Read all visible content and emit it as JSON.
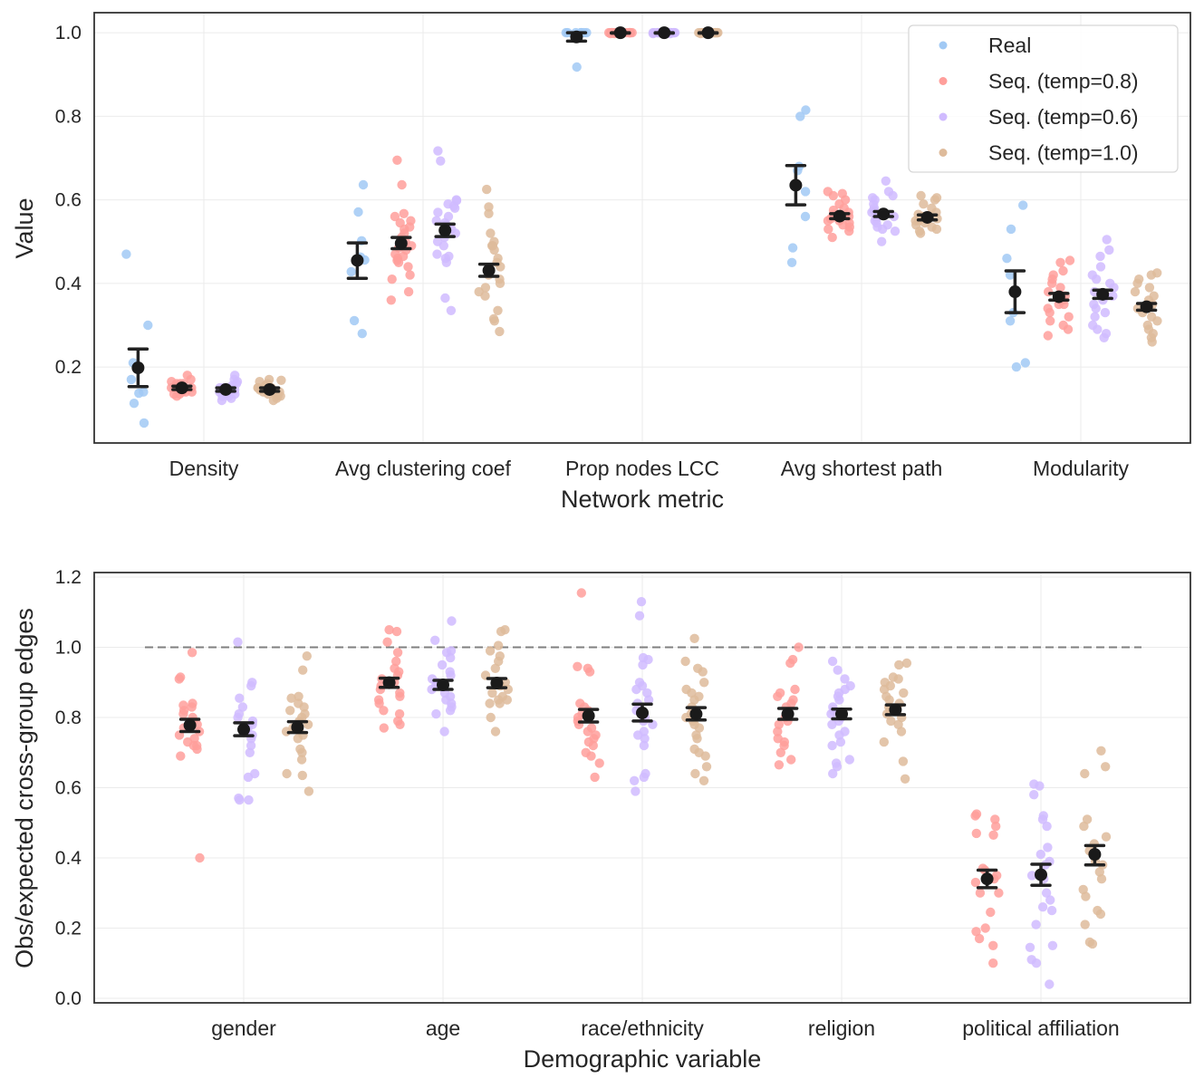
{
  "chart_data": [
    {
      "type": "scatter",
      "subtype": "strip plot with mean and error bars",
      "xlabel": "Network metric",
      "ylabel": "Value",
      "categories": [
        "Density",
        "Avg clustering coef",
        "Prop nodes LCC",
        "Avg shortest path",
        "Modularity"
      ],
      "ylim": [
        0.018,
        1.048
      ],
      "yticks": [
        "0.2",
        "0.4",
        "0.6",
        "0.8",
        "1.0"
      ],
      "grid": true,
      "legend": {
        "placement": "top-right",
        "entries": [
          "Real",
          "Seq. (temp=0.8)",
          "Seq. (temp=0.6)",
          "Seq. (temp=1.0)"
        ]
      },
      "series": [
        {
          "name": "Real",
          "color": "#a1c9f4",
          "values": [
            [
              0.47,
              0.3,
              0.21,
              0.17,
              0.14,
              0.137,
              0.113,
              0.066
            ],
            [
              0.636,
              0.571,
              0.502,
              0.463,
              0.456,
              0.428,
              0.311,
              0.28
            ],
            [
              1.0,
              1.0,
              1.0,
              1.0,
              1.0,
              1.0,
              1.0,
              0.918
            ],
            [
              0.815,
              0.8,
              0.68,
              0.67,
              0.62,
              0.56,
              0.485,
              0.45
            ],
            [
              0.587,
              0.53,
              0.46,
              0.42,
              0.33,
              0.31,
              0.21,
              0.2
            ]
          ],
          "mean": [
            0.198,
            0.455,
            0.99,
            0.635,
            0.38
          ],
          "ci": [
            [
              0.153,
              0.243
            ],
            [
              0.412,
              0.497
            ],
            [
              0.98,
              1.0
            ],
            [
              0.588,
              0.682
            ],
            [
              0.33,
              0.43
            ]
          ]
        },
        {
          "name": "Seq. (temp=0.8)",
          "color": "#ff9f9b",
          "values": [
            [
              0.18,
              0.17,
              0.165,
              0.16,
              0.16,
              0.155,
              0.155,
              0.15,
              0.15,
              0.15,
              0.145,
              0.145,
              0.14,
              0.14,
              0.14,
              0.135,
              0.135,
              0.13,
              0.15,
              0.16
            ],
            [
              0.695,
              0.636,
              0.567,
              0.56,
              0.55,
              0.545,
              0.535,
              0.53,
              0.52,
              0.51,
              0.5,
              0.5,
              0.49,
              0.485,
              0.48,
              0.47,
              0.465,
              0.46,
              0.455,
              0.45,
              0.44,
              0.42,
              0.41,
              0.38,
              0.36
            ],
            [
              1.0,
              1.0,
              1.0,
              1.0,
              1.0,
              1.0,
              1.0,
              1.0,
              1.0,
              1.0,
              1.0,
              1.0,
              1.0,
              1.0,
              1.0,
              1.0,
              1.0,
              1.0,
              0.998,
              0.998
            ],
            [
              0.62,
              0.615,
              0.61,
              0.6,
              0.59,
              0.58,
              0.575,
              0.57,
              0.565,
              0.56,
              0.56,
              0.555,
              0.55,
              0.55,
              0.545,
              0.54,
              0.535,
              0.53,
              0.525,
              0.51
            ],
            [
              0.455,
              0.45,
              0.43,
              0.42,
              0.41,
              0.4,
              0.39,
              0.38,
              0.37,
              0.36,
              0.35,
              0.35,
              0.34,
              0.33,
              0.32,
              0.31,
              0.3,
              0.29,
              0.275
            ]
          ],
          "mean": [
            0.15,
            0.496,
            1.0,
            0.561,
            0.368
          ],
          "ci": [
            [
              0.146,
              0.154
            ],
            [
              0.483,
              0.51
            ],
            [
              0.999,
              1.0
            ],
            [
              0.555,
              0.567
            ],
            [
              0.36,
              0.376
            ]
          ]
        },
        {
          "name": "Seq. (temp=0.6)",
          "color": "#d0bbff",
          "values": [
            [
              0.18,
              0.17,
              0.165,
              0.16,
              0.155,
              0.15,
              0.15,
              0.145,
              0.145,
              0.14,
              0.14,
              0.14,
              0.135,
              0.135,
              0.13,
              0.13,
              0.125,
              0.12,
              0.15,
              0.145
            ],
            [
              0.717,
              0.693,
              0.6,
              0.598,
              0.59,
              0.585,
              0.58,
              0.57,
              0.56,
              0.55,
              0.545,
              0.54,
              0.53,
              0.52,
              0.51,
              0.5,
              0.49,
              0.47,
              0.465,
              0.46,
              0.45,
              0.365,
              0.335
            ],
            [
              1.0,
              1.0,
              1.0,
              1.0,
              1.0,
              1.0,
              1.0,
              1.0,
              1.0,
              1.0,
              1.0,
              1.0,
              1.0,
              1.0,
              1.0,
              1.0,
              1.0,
              1.0,
              0.998,
              0.998
            ],
            [
              0.645,
              0.62,
              0.61,
              0.605,
              0.6,
              0.59,
              0.58,
              0.575,
              0.57,
              0.565,
              0.56,
              0.555,
              0.55,
              0.545,
              0.54,
              0.535,
              0.53,
              0.525,
              0.5
            ],
            [
              0.505,
              0.48,
              0.465,
              0.44,
              0.42,
              0.41,
              0.4,
              0.39,
              0.38,
              0.37,
              0.36,
              0.35,
              0.34,
              0.33,
              0.32,
              0.3,
              0.29,
              0.28,
              0.27
            ]
          ],
          "mean": [
            0.146,
            0.527,
            1.0,
            0.566,
            0.374
          ],
          "ci": [
            [
              0.142,
              0.15
            ],
            [
              0.512,
              0.542
            ],
            [
              0.999,
              1.0
            ],
            [
              0.56,
              0.572
            ],
            [
              0.364,
              0.384
            ]
          ]
        },
        {
          "name": "Seq. (temp=1.0)",
          "color": "#debb9b",
          "values": [
            [
              0.17,
              0.168,
              0.165,
              0.16,
              0.155,
              0.15,
              0.15,
              0.145,
              0.145,
              0.14,
              0.14,
              0.14,
              0.135,
              0.135,
              0.13,
              0.13,
              0.125,
              0.12,
              0.15,
              0.145
            ],
            [
              0.625,
              0.583,
              0.567,
              0.52,
              0.5,
              0.49,
              0.49,
              0.48,
              0.46,
              0.45,
              0.44,
              0.43,
              0.42,
              0.41,
              0.4,
              0.39,
              0.38,
              0.37,
              0.335,
              0.315,
              0.31,
              0.285
            ],
            [
              1.0,
              1.0,
              1.0,
              1.0,
              1.0,
              1.0,
              1.0,
              1.0,
              1.0,
              1.0,
              1.0,
              1.0,
              1.0,
              1.0,
              1.0,
              1.0,
              1.0,
              1.0,
              0.998,
              0.998
            ],
            [
              0.61,
              0.605,
              0.6,
              0.59,
              0.58,
              0.57,
              0.565,
              0.56,
              0.555,
              0.55,
              0.55,
              0.545,
              0.54,
              0.535,
              0.53,
              0.525,
              0.52
            ],
            [
              0.425,
              0.42,
              0.41,
              0.4,
              0.39,
              0.38,
              0.37,
              0.36,
              0.35,
              0.34,
              0.33,
              0.32,
              0.31,
              0.3,
              0.29,
              0.28,
              0.27,
              0.26
            ]
          ],
          "mean": [
            0.146,
            0.431,
            1.0,
            0.558,
            0.344
          ],
          "ci": [
            [
              0.142,
              0.15
            ],
            [
              0.417,
              0.446
            ],
            [
              0.999,
              1.0
            ],
            [
              0.552,
              0.564
            ],
            [
              0.336,
              0.352
            ]
          ]
        }
      ]
    },
    {
      "type": "scatter",
      "subtype": "strip plot with mean and error bars",
      "xlabel": "Demographic variable",
      "ylabel": "Obs/expected cross-group edges",
      "categories": [
        "gender",
        "age",
        "race/ethnicity",
        "religion",
        "political affiliation"
      ],
      "ylim": [
        -0.013,
        1.213
      ],
      "yticks": [
        "0.0",
        "0.2",
        "0.4",
        "0.6",
        "0.8",
        "1.0",
        "1.2"
      ],
      "grid": true,
      "reference_line": {
        "y": 1.0,
        "style": "dashed",
        "color": "#808080"
      },
      "series": [
        {
          "name": "Seq. (temp=0.8)",
          "color": "#ff9f9b",
          "values": [
            [
              0.985,
              0.915,
              0.91,
              0.84,
              0.835,
              0.83,
              0.82,
              0.81,
              0.8,
              0.79,
              0.78,
              0.77,
              0.76,
              0.75,
              0.74,
              0.73,
              0.72,
              0.72,
              0.71,
              0.69,
              0.4
            ],
            [
              1.05,
              1.045,
              1.015,
              0.985,
              0.96,
              0.94,
              0.93,
              0.92,
              0.91,
              0.9,
              0.89,
              0.88,
              0.87,
              0.86,
              0.85,
              0.84,
              0.82,
              0.81,
              0.79,
              0.78,
              0.77
            ],
            [
              1.155,
              0.945,
              0.94,
              0.93,
              0.84,
              0.83,
              0.82,
              0.81,
              0.8,
              0.79,
              0.78,
              0.77,
              0.76,
              0.75,
              0.74,
              0.73,
              0.72,
              0.7,
              0.69,
              0.67,
              0.63
            ],
            [
              1.0,
              0.965,
              0.955,
              0.88,
              0.87,
              0.86,
              0.85,
              0.84,
              0.83,
              0.81,
              0.8,
              0.79,
              0.78,
              0.76,
              0.74,
              0.73,
              0.72,
              0.7,
              0.68,
              0.665
            ],
            [
              0.525,
              0.52,
              0.51,
              0.49,
              0.47,
              0.465,
              0.37,
              0.365,
              0.35,
              0.34,
              0.33,
              0.3,
              0.3,
              0.245,
              0.2,
              0.19,
              0.17,
              0.15,
              0.1
            ]
          ],
          "mean": [
            0.778,
            0.899,
            0.805,
            0.81,
            0.34
          ],
          "ci": [
            [
              0.76,
              0.795
            ],
            [
              0.886,
              0.912
            ],
            [
              0.787,
              0.823
            ],
            [
              0.795,
              0.826
            ],
            [
              0.315,
              0.365
            ]
          ]
        },
        {
          "name": "Seq. (temp=0.6)",
          "color": "#d0bbff",
          "values": [
            [
              1.015,
              0.9,
              0.89,
              0.855,
              0.83,
              0.81,
              0.8,
              0.79,
              0.78,
              0.77,
              0.76,
              0.75,
              0.74,
              0.72,
              0.7,
              0.64,
              0.63,
              0.57,
              0.565,
              0.565
            ],
            [
              1.075,
              1.02,
              0.99,
              0.985,
              0.97,
              0.95,
              0.93,
              0.92,
              0.91,
              0.9,
              0.89,
              0.88,
              0.87,
              0.86,
              0.85,
              0.84,
              0.83,
              0.82,
              0.81,
              0.76
            ],
            [
              1.13,
              1.09,
              0.97,
              0.965,
              0.95,
              0.9,
              0.89,
              0.88,
              0.87,
              0.85,
              0.84,
              0.82,
              0.8,
              0.79,
              0.78,
              0.76,
              0.75,
              0.74,
              0.72,
              0.64,
              0.63,
              0.62,
              0.59
            ],
            [
              0.96,
              0.935,
              0.91,
              0.89,
              0.88,
              0.87,
              0.86,
              0.85,
              0.83,
              0.82,
              0.81,
              0.8,
              0.79,
              0.78,
              0.76,
              0.75,
              0.73,
              0.72,
              0.68,
              0.67,
              0.66,
              0.64
            ],
            [
              0.61,
              0.605,
              0.58,
              0.52,
              0.51,
              0.49,
              0.43,
              0.41,
              0.39,
              0.38,
              0.35,
              0.34,
              0.3,
              0.28,
              0.26,
              0.25,
              0.21,
              0.15,
              0.145,
              0.11,
              0.1,
              0.04
            ]
          ],
          "mean": [
            0.766,
            0.893,
            0.813,
            0.81,
            0.352
          ],
          "ci": [
            [
              0.748,
              0.785
            ],
            [
              0.88,
              0.906
            ],
            [
              0.79,
              0.838
            ],
            [
              0.796,
              0.824
            ],
            [
              0.322,
              0.382
            ]
          ]
        },
        {
          "name": "Seq. (temp=1.0)",
          "color": "#debb9b",
          "values": [
            [
              0.975,
              0.935,
              0.86,
              0.855,
              0.84,
              0.83,
              0.82,
              0.81,
              0.8,
              0.79,
              0.78,
              0.77,
              0.76,
              0.75,
              0.74,
              0.71,
              0.7,
              0.68,
              0.64,
              0.635,
              0.59
            ],
            [
              1.05,
              1.045,
              1.005,
              0.99,
              0.975,
              0.96,
              0.94,
              0.92,
              0.9,
              0.89,
              0.88,
              0.87,
              0.86,
              0.85,
              0.85,
              0.84,
              0.84,
              0.8,
              0.76
            ],
            [
              1.025,
              0.96,
              0.94,
              0.93,
              0.9,
              0.88,
              0.87,
              0.86,
              0.85,
              0.83,
              0.81,
              0.8,
              0.79,
              0.78,
              0.77,
              0.75,
              0.74,
              0.71,
              0.7,
              0.69,
              0.66,
              0.64,
              0.62
            ],
            [
              0.955,
              0.95,
              0.915,
              0.91,
              0.9,
              0.89,
              0.88,
              0.87,
              0.86,
              0.85,
              0.84,
              0.83,
              0.82,
              0.81,
              0.8,
              0.79,
              0.78,
              0.76,
              0.73,
              0.675,
              0.625
            ],
            [
              0.705,
              0.66,
              0.64,
              0.51,
              0.49,
              0.46,
              0.44,
              0.42,
              0.39,
              0.38,
              0.36,
              0.34,
              0.31,
              0.29,
              0.25,
              0.24,
              0.21,
              0.16,
              0.155
            ]
          ],
          "mean": [
            0.772,
            0.898,
            0.81,
            0.822,
            0.41
          ],
          "ci": [
            [
              0.757,
              0.788
            ],
            [
              0.885,
              0.911
            ],
            [
              0.793,
              0.828
            ],
            [
              0.808,
              0.836
            ],
            [
              0.38,
              0.435
            ]
          ]
        }
      ]
    }
  ]
}
